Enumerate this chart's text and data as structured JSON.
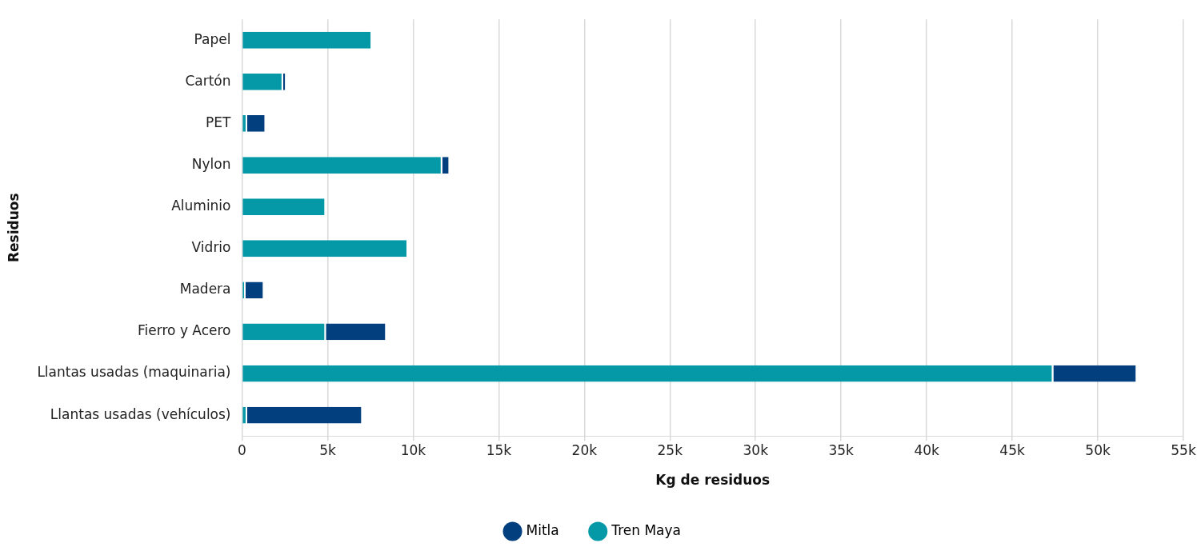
{
  "chart_data": {
    "type": "bar",
    "orientation": "horizontal",
    "stacked": true,
    "xlabel": "Kg de residuos",
    "ylabel": "Residuos",
    "categories": [
      "Papel",
      "Cartón",
      "PET",
      "Nylon",
      "Aluminio",
      "Vidrio",
      "Madera",
      "Fierro y Acero",
      "Llantas usadas (maquinaria)",
      "Llantas usadas (vehículos)"
    ],
    "series": [
      {
        "name": "Tren Maya",
        "color": "#0599a8",
        "values": [
          7600,
          2400,
          300,
          11700,
          4900,
          9700,
          200,
          4900,
          47400,
          300
        ]
      },
      {
        "name": "Mitla",
        "color": "#013f7f",
        "values": [
          null,
          200,
          1100,
          450,
          null,
          null,
          1100,
          3550,
          4900,
          6750
        ]
      }
    ],
    "xlim": [
      0,
      55000
    ],
    "xticks": [
      0,
      {
        "value": 5000,
        "label": "5k"
      },
      {
        "value": 10000,
        "label": "10k"
      },
      {
        "value": 15000,
        "label": "15k"
      },
      {
        "value": 20000,
        "label": "20k"
      },
      {
        "value": 25000,
        "label": "25k"
      },
      {
        "value": 30000,
        "label": "30k"
      },
      {
        "value": 35000,
        "label": "35k"
      },
      {
        "value": 40000,
        "label": "40k"
      },
      {
        "value": 45000,
        "label": "45k"
      },
      {
        "value": 50000,
        "label": "50k"
      },
      {
        "value": 55000,
        "label": "55k"
      }
    ],
    "grid": "x",
    "legend": "bottom"
  }
}
